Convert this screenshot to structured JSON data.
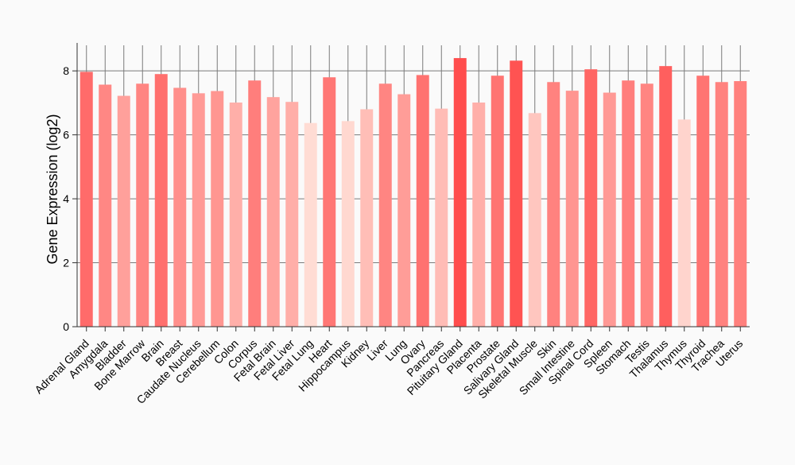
{
  "chart_data": {
    "type": "bar",
    "title": "",
    "xlabel": "",
    "ylabel": "Gene Expression (log2)",
    "ylim": [
      0,
      8.8
    ],
    "yticks": [
      0,
      2,
      4,
      6,
      8
    ],
    "grid": true,
    "categories": [
      "Adrenal Gland",
      "Amygdala",
      "Bladder",
      "Bone Marrow",
      "Brain",
      "Breast",
      "Caudate Nucleus",
      "Cerebellum",
      "Colon",
      "Corpus",
      "Fetal Brain",
      "Fetal Liver",
      "Fetal Lung",
      "Heart",
      "Hippocampus",
      "Kidney",
      "Liver",
      "Lung",
      "Ovary",
      "Pancreas",
      "Pituitary Gland",
      "Placenta",
      "Prostate",
      "Salivary Gland",
      "Skeletal Muscle",
      "Skin",
      "Small Intestine",
      "Spinal Cord",
      "Spleen",
      "Stomach",
      "Testis",
      "Thalamus",
      "Thymus",
      "Thyroid",
      "Trachea",
      "Uterus"
    ],
    "values": [
      7.97,
      7.57,
      7.22,
      7.6,
      7.9,
      7.47,
      7.3,
      7.37,
      7.01,
      7.7,
      7.18,
      7.03,
      6.37,
      7.8,
      6.43,
      6.8,
      7.6,
      7.27,
      7.87,
      6.82,
      8.4,
      7.01,
      7.85,
      8.32,
      6.68,
      7.65,
      7.38,
      8.05,
      7.32,
      7.7,
      7.6,
      8.15,
      6.48,
      7.85,
      7.65,
      7.68
    ],
    "color_scale": {
      "low": "#ffdcd4",
      "high": "#ff4d4d"
    }
  }
}
